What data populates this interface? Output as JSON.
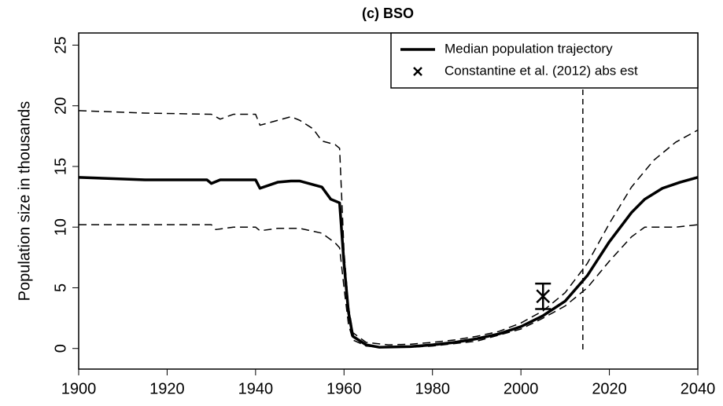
{
  "chart_data": {
    "type": "line",
    "title": "(c) BSO",
    "ylabel": "Population size in thousands",
    "xlim": [
      1900,
      2040
    ],
    "ylim": [
      -1.7,
      26
    ],
    "xticks": [
      1900,
      1920,
      1940,
      1960,
      1980,
      2000,
      2020,
      2040
    ],
    "yticks": [
      0,
      5,
      10,
      15,
      20,
      25
    ],
    "legend": "topright",
    "vline": 2014,
    "series": [
      {
        "color": "#000000",
        "linestyle": "dashed",
        "linewidth": 1.5,
        "x": [
          1900,
          1915,
          1930,
          1932,
          1935,
          1940,
          1941,
          1945,
          1948,
          1950,
          1953,
          1955,
          1958,
          1959,
          1960,
          1961,
          1962,
          1965,
          1970,
          1975,
          1980,
          1985,
          1990,
          1995,
          2000,
          2005,
          2010,
          2015,
          2020,
          2025,
          2030,
          2035,
          2040
        ],
        "values": [
          19.6,
          19.4,
          19.3,
          18.9,
          19.3,
          19.3,
          18.4,
          18.8,
          19.1,
          18.8,
          18.1,
          17.1,
          16.8,
          16.5,
          8,
          3.5,
          1.3,
          0.5,
          0.3,
          0.35,
          0.5,
          0.7,
          1.0,
          1.4,
          2.1,
          3.1,
          4.6,
          7.0,
          10.3,
          13.3,
          15.5,
          17.0,
          18.0
        ]
      },
      {
        "color": "#000000",
        "linestyle": "dashed",
        "linewidth": 1.5,
        "x": [
          1900,
          1930,
          1931,
          1935,
          1940,
          1941,
          1945,
          1950,
          1955,
          1958,
          1959,
          1960,
          1961,
          1962,
          1965,
          1968,
          1975,
          1980,
          1990,
          2000,
          2005,
          2010,
          2015,
          2020,
          2025,
          2028,
          2035,
          2040
        ],
        "values": [
          10.2,
          10.2,
          9.8,
          10.0,
          10.0,
          9.7,
          9.9,
          9.9,
          9.5,
          8.7,
          8.3,
          5,
          2,
          0.7,
          0.2,
          0.1,
          0.1,
          0.2,
          0.6,
          1.6,
          2.5,
          3.5,
          5.0,
          7.2,
          9.2,
          10.0,
          10.0,
          10.2
        ]
      },
      {
        "name": "Median population trajectory",
        "color": "#000000",
        "linestyle": "solid",
        "linewidth": 3.5,
        "x": [
          1900,
          1915,
          1929,
          1930,
          1932,
          1940,
          1941,
          1945,
          1948,
          1950,
          1955,
          1957,
          1959,
          1960,
          1961,
          1962,
          1965,
          1968,
          1975,
          1980,
          1985,
          1990,
          1995,
          2000,
          2005,
          2010,
          2015,
          2020,
          2025,
          2028,
          2032,
          2036,
          2040
        ],
        "values": [
          14.1,
          13.9,
          13.9,
          13.6,
          13.9,
          13.9,
          13.2,
          13.7,
          13.8,
          13.8,
          13.3,
          12.3,
          12.0,
          7,
          3,
          1,
          0.3,
          0.1,
          0.15,
          0.3,
          0.5,
          0.8,
          1.2,
          1.8,
          2.7,
          3.9,
          6.0,
          8.8,
          11.2,
          12.3,
          13.2,
          13.7,
          14.1
        ]
      },
      {
        "name": "Constantine et al. (2012) abs est",
        "type": "scatter",
        "marker": "x",
        "color": "#000000",
        "x": [
          2005
        ],
        "values": [
          4.3
        ],
        "error": [
          1.05
        ]
      }
    ]
  }
}
